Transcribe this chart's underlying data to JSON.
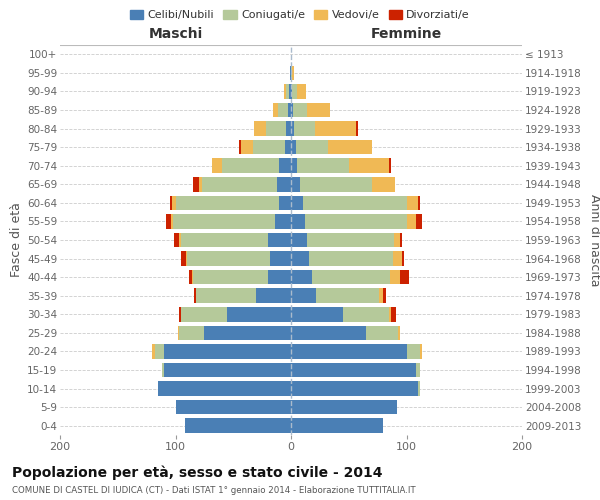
{
  "age_groups": [
    "0-4",
    "5-9",
    "10-14",
    "15-19",
    "20-24",
    "25-29",
    "30-34",
    "35-39",
    "40-44",
    "45-49",
    "50-54",
    "55-59",
    "60-64",
    "65-69",
    "70-74",
    "75-79",
    "80-84",
    "85-89",
    "90-94",
    "95-99",
    "100+"
  ],
  "birth_years": [
    "2009-2013",
    "2004-2008",
    "1999-2003",
    "1994-1998",
    "1989-1993",
    "1984-1988",
    "1979-1983",
    "1974-1978",
    "1969-1973",
    "1964-1968",
    "1959-1963",
    "1954-1958",
    "1949-1953",
    "1944-1948",
    "1939-1943",
    "1934-1938",
    "1929-1933",
    "1924-1928",
    "1919-1923",
    "1914-1918",
    "≤ 1913"
  ],
  "maschi": {
    "celibi": [
      92,
      100,
      115,
      110,
      110,
      75,
      55,
      30,
      20,
      18,
      20,
      14,
      10,
      12,
      10,
      5,
      4,
      3,
      2,
      1,
      0
    ],
    "coniugati": [
      0,
      0,
      0,
      2,
      8,
      22,
      40,
      52,
      65,
      72,
      75,
      88,
      90,
      65,
      50,
      28,
      18,
      8,
      2,
      0,
      0
    ],
    "vedovi": [
      0,
      0,
      0,
      0,
      2,
      1,
      0,
      0,
      1,
      1,
      2,
      2,
      3,
      3,
      8,
      10,
      10,
      5,
      2,
      0,
      0
    ],
    "divorziati": [
      0,
      0,
      0,
      0,
      0,
      0,
      2,
      2,
      2,
      4,
      4,
      4,
      2,
      5,
      0,
      2,
      0,
      0,
      0,
      0,
      0
    ]
  },
  "femmine": {
    "nubili": [
      80,
      92,
      110,
      108,
      100,
      65,
      45,
      22,
      18,
      16,
      14,
      12,
      10,
      8,
      5,
      4,
      3,
      2,
      1,
      0,
      0
    ],
    "coniugate": [
      0,
      0,
      2,
      4,
      12,
      28,
      40,
      54,
      68,
      72,
      75,
      88,
      90,
      62,
      45,
      28,
      18,
      12,
      4,
      1,
      0
    ],
    "vedove": [
      0,
      0,
      0,
      0,
      1,
      1,
      2,
      4,
      8,
      8,
      5,
      8,
      10,
      20,
      35,
      38,
      35,
      20,
      8,
      2,
      0
    ],
    "divorziate": [
      0,
      0,
      0,
      0,
      0,
      0,
      4,
      2,
      8,
      2,
      2,
      5,
      2,
      0,
      2,
      0,
      2,
      0,
      0,
      0,
      0
    ]
  },
  "colors": {
    "celibi_nubili": "#4a7fb5",
    "coniugati_e": "#b5c99a",
    "vedovi_e": "#f0b955",
    "divorziati_e": "#cc2200"
  },
  "title": "Popolazione per età, sesso e stato civile - 2014",
  "subtitle": "COMUNE DI CASTEL DI IUDICA (CT) - Dati ISTAT 1° gennaio 2014 - Elaborazione TUTTITALIA.IT",
  "ylabel_left": "Fasce di età",
  "ylabel_right": "Anni di nascita",
  "xlabel_left": "Maschi",
  "xlabel_right": "Femmine",
  "xlim": 200,
  "bg_color": "#ffffff",
  "grid_color": "#cccccc"
}
